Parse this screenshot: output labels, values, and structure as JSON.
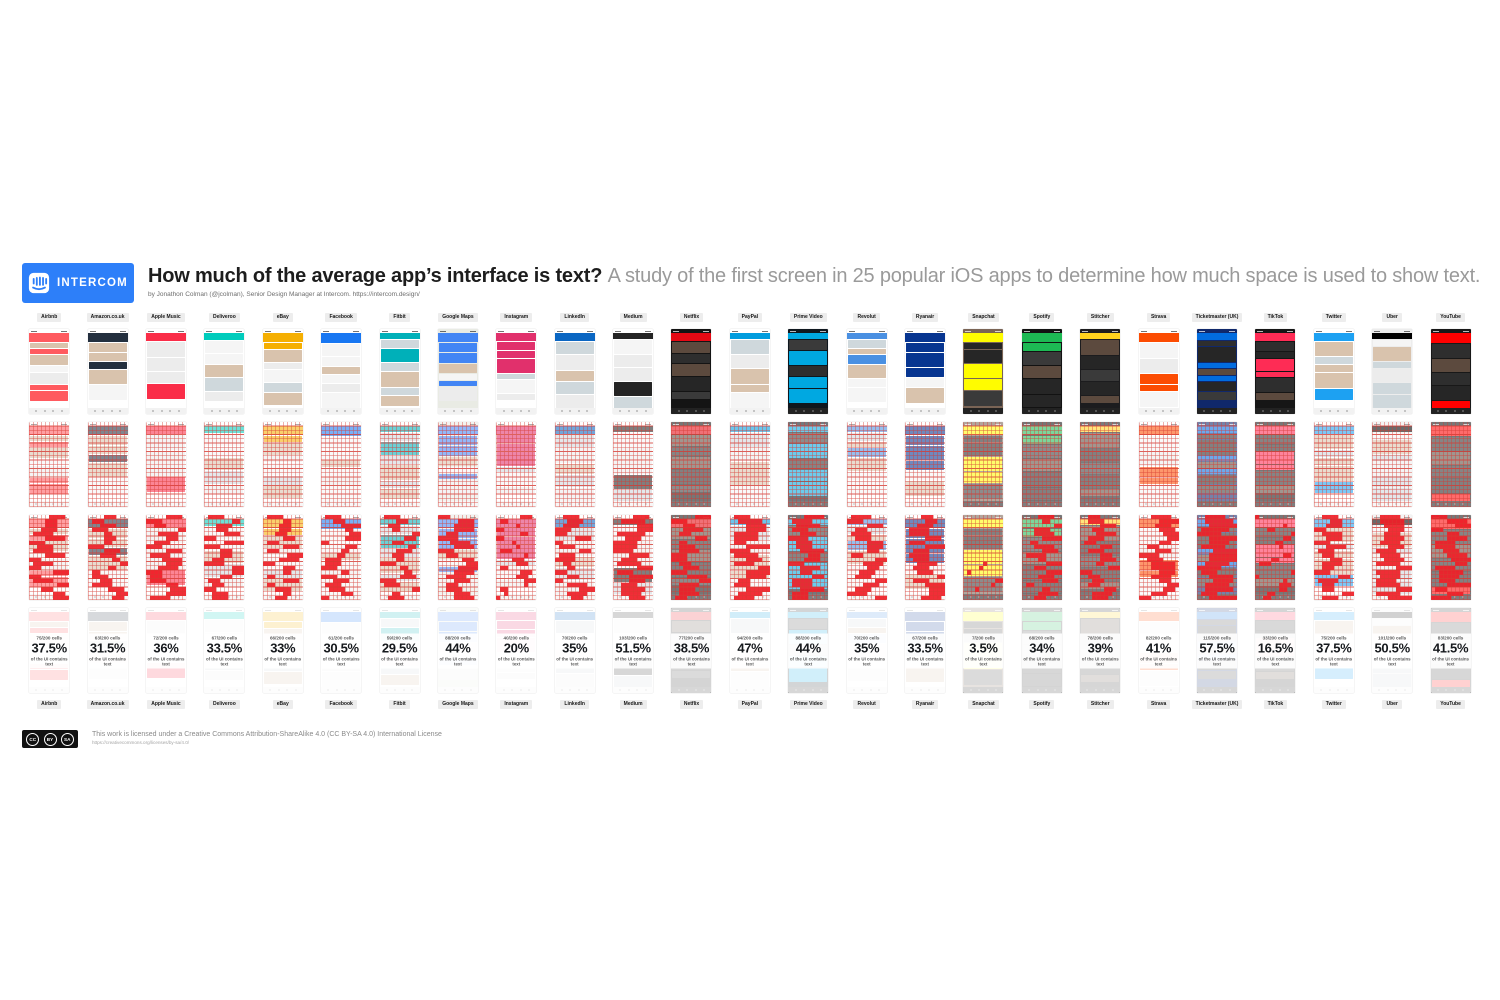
{
  "header": {
    "logo_text": "INTERCOM",
    "title": "How much of the average app’s interface is text?",
    "subtitle": "A study of the first screen in 25 popular iOS apps to determine how much space is used to show text.",
    "byline": "by Jonathon Colman (@jcolman), Senior Design Manager at Intercom. https://intercom.design/"
  },
  "stats_caption": "of the UI contains text",
  "grid_total_cells": 200,
  "apps": [
    {
      "name": "Airbnb",
      "cells": "75/200 cells",
      "percent": "37.5%",
      "accent": "#FF5A5F",
      "bg": "#ffffff",
      "dark": false
    },
    {
      "name": "Amazon.co.uk",
      "cells": "63/200 cells",
      "percent": "31.5%",
      "accent": "#232F3E",
      "bg": "#ffffff",
      "dark": false
    },
    {
      "name": "Apple Music",
      "cells": "72/200 cells",
      "percent": "36%",
      "accent": "#FA2D48",
      "bg": "#ffffff",
      "dark": false
    },
    {
      "name": "Deliveroo",
      "cells": "67/200 cells",
      "percent": "33.5%",
      "accent": "#00CCBC",
      "bg": "#ffffff",
      "dark": false
    },
    {
      "name": "eBay",
      "cells": "66/200 cells",
      "percent": "33%",
      "accent": "#F5AF02",
      "bg": "#ffffff",
      "dark": false
    },
    {
      "name": "Facebook",
      "cells": "61/200 cells",
      "percent": "30.5%",
      "accent": "#1877F2",
      "bg": "#ffffff",
      "dark": false
    },
    {
      "name": "Fitbit",
      "cells": "59/200 cells",
      "percent": "29.5%",
      "accent": "#00B0B9",
      "bg": "#ffffff",
      "dark": false
    },
    {
      "name": "Google Maps",
      "cells": "88/200 cells",
      "percent": "44%",
      "accent": "#4285F4",
      "bg": "#E9EBE4",
      "dark": false
    },
    {
      "name": "Instagram",
      "cells": "40/200 cells",
      "percent": "20%",
      "accent": "#E1306C",
      "bg": "#ffffff",
      "dark": false
    },
    {
      "name": "LinkedIn",
      "cells": "70/200 cells",
      "percent": "35%",
      "accent": "#0A66C2",
      "bg": "#ffffff",
      "dark": false
    },
    {
      "name": "Medium",
      "cells": "103/200 cells",
      "percent": "51.5%",
      "accent": "#242424",
      "bg": "#ffffff",
      "dark": false
    },
    {
      "name": "Netflix",
      "cells": "77/200 cells",
      "percent": "38.5%",
      "accent": "#E50914",
      "bg": "#141414",
      "dark": true
    },
    {
      "name": "PayPal",
      "cells": "94/200 cells",
      "percent": "47%",
      "accent": "#009CDE",
      "bg": "#ffffff",
      "dark": false
    },
    {
      "name": "Prime Video",
      "cells": "88/200 cells",
      "percent": "44%",
      "accent": "#00A8E1",
      "bg": "#0F171E",
      "dark": true
    },
    {
      "name": "Revolut",
      "cells": "70/200 cells",
      "percent": "35%",
      "accent": "#4A90E2",
      "bg": "#ffffff",
      "dark": false
    },
    {
      "name": "Ryanair",
      "cells": "67/200 cells",
      "percent": "33.5%",
      "accent": "#073590",
      "bg": "#ffffff",
      "dark": false
    },
    {
      "name": "Snapchat",
      "cells": "7/200 cells",
      "percent": "3.5%",
      "accent": "#FFFC00",
      "bg": "#7A6455",
      "dark": true
    },
    {
      "name": "Spotify",
      "cells": "68/200 cells",
      "percent": "34%",
      "accent": "#1DB954",
      "bg": "#121212",
      "dark": true
    },
    {
      "name": "Stitcher",
      "cells": "78/200 cells",
      "percent": "39%",
      "accent": "#FFD21E",
      "bg": "#1C1C1E",
      "dark": true
    },
    {
      "name": "Strava",
      "cells": "82/200 cells",
      "percent": "41%",
      "accent": "#FC4C02",
      "bg": "#ffffff",
      "dark": false
    },
    {
      "name": "Ticketmaster (UK)",
      "cells": "115/200 cells",
      "percent": "57.5%",
      "accent": "#026CDF",
      "bg": "#10286B",
      "dark": true
    },
    {
      "name": "TikTok",
      "cells": "33/200 cells",
      "percent": "16.5%",
      "accent": "#FE2C55",
      "bg": "#161616",
      "dark": true
    },
    {
      "name": "Twitter",
      "cells": "75/200 cells",
      "percent": "37.5%",
      "accent": "#1DA1F2",
      "bg": "#ffffff",
      "dark": false
    },
    {
      "name": "Uber",
      "cells": "101/200 cells",
      "percent": "50.5%",
      "accent": "#000000",
      "bg": "#EDEDED",
      "dark": false
    },
    {
      "name": "YouTube",
      "cells": "83/200 cells",
      "percent": "41.5%",
      "accent": "#FF0000",
      "bg": "#181818",
      "dark": true
    }
  ],
  "footer": {
    "license": "This work is licensed under a Creative Commons Attribution-ShareAlike 4.0 (CC BY-SA 4.0) International License",
    "license_url": "https://creativecommons.org/licenses/by-sa/4.0/",
    "badge_icons": {
      "cc": "CC",
      "by": "BY",
      "sa": "SA"
    }
  },
  "colors": {
    "intercom_blue": "#2D7FF9",
    "grid_red": "#D63A32",
    "text_fill_red": "#F01E28",
    "title_black": "#1D1D1D",
    "subtitle_gray": "#9A9A9A",
    "pill_bg": "#EDEDED"
  },
  "chart_data": {
    "type": "table",
    "title": "How much of the average app’s interface is text?",
    "subtitle": "A study of the first screen in 25 popular iOS apps to determine how much space is used to show text.",
    "unit": "percent of 200 grid cells containing text",
    "categories": [
      "Airbnb",
      "Amazon.co.uk",
      "Apple Music",
      "Deliveroo",
      "eBay",
      "Facebook",
      "Fitbit",
      "Google Maps",
      "Instagram",
      "LinkedIn",
      "Medium",
      "Netflix",
      "PayPal",
      "Prime Video",
      "Revolut",
      "Ryanair",
      "Snapchat",
      "Spotify",
      "Stitcher",
      "Strava",
      "Ticketmaster (UK)",
      "TikTok",
      "Twitter",
      "Uber",
      "YouTube"
    ],
    "series": [
      {
        "name": "percent_of_ui_with_text",
        "values": [
          37.5,
          31.5,
          36,
          33.5,
          33,
          30.5,
          29.5,
          44,
          20,
          35,
          51.5,
          38.5,
          47,
          44,
          35,
          33.5,
          3.5,
          34,
          39,
          41,
          57.5,
          16.5,
          37.5,
          50.5,
          41.5
        ]
      },
      {
        "name": "cells_with_text_of_200",
        "values": [
          75,
          63,
          72,
          67,
          66,
          61,
          59,
          88,
          40,
          70,
          103,
          77,
          94,
          88,
          70,
          67,
          7,
          68,
          78,
          82,
          115,
          33,
          75,
          101,
          83
        ]
      }
    ]
  }
}
